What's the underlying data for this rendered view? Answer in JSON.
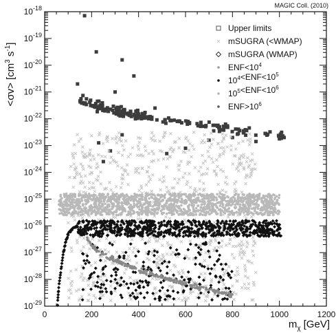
{
  "chart_data": {
    "type": "scatter",
    "title": "",
    "credit": "MAGIC Coll. (2010)",
    "xlabel": "m",
    "xlabel_subscript": "χ",
    "xlabel_unit": "[GeV]",
    "ylabel": "<σv> [cm",
    "ylabel_sup": "3",
    "ylabel_tail": " s",
    "ylabel_sup2": "-1",
    "ylabel_end": "]",
    "xlim": [
      0,
      1200
    ],
    "ylim_log10": [
      -29,
      -18
    ],
    "y_scale": "log",
    "grid": false,
    "legend_position": "top-right",
    "x_ticks": [
      0,
      200,
      400,
      600,
      800,
      1000,
      1200
    ],
    "x_tick_labels": [
      "0",
      "200",
      "400",
      "600",
      "800",
      "1000",
      "1200"
    ],
    "y_ticks_exp": [
      -29,
      -28,
      -27,
      -26,
      -25,
      -24,
      -23,
      -22,
      -21,
      -20,
      -19,
      -18
    ],
    "y_tick_base": "10",
    "legend": [
      {
        "label": "Upper limits",
        "marker": "open-square",
        "color": "#555555"
      },
      {
        "label": "mSUGRA (<WMAP)",
        "marker": "cross",
        "color": "#c8c8c8"
      },
      {
        "label": "mSUGRA (WMAP)",
        "marker": "open-diamond",
        "color": "#333333"
      },
      {
        "label_base": "ENF<10",
        "label_sup": "4",
        "marker": "dot",
        "color": "#9a9a9a"
      },
      {
        "label_pre": "10",
        "label_pre_sup": "4",
        "label_base": "<ENF<10",
        "label_sup": "5",
        "marker": "dot",
        "color": "#111111"
      },
      {
        "label_pre": "10",
        "label_pre_sup": "5",
        "label_base": "<ENF<10",
        "label_sup": "6",
        "marker": "dot",
        "color": "#b4b4b4"
      },
      {
        "label_base": "ENF>10",
        "label_sup": "6",
        "marker": "dot",
        "color": "#5a5a5a"
      }
    ],
    "series": [
      {
        "name": "Upper limits",
        "marker": "filled-square",
        "color": "#3c3c3c",
        "points": [
          {
            "x": 170,
            "y_exp": -18.15
          },
          {
            "x": 220,
            "y_exp": -19.5
          },
          {
            "x": 330,
            "y_exp": -19.8
          },
          {
            "x": 380,
            "y_exp": -20.4
          },
          {
            "x": 140,
            "y_exp": -20.7
          },
          {
            "x": 300,
            "y_exp": -21.0
          },
          {
            "x": 470,
            "y_exp": -21.6
          },
          {
            "x": 250,
            "y_exp": -23.6
          },
          {
            "x": 280,
            "y_exp": -23.2
          },
          {
            "x": 230,
            "y_exp": -22.9
          },
          {
            "x": 520,
            "y_exp": -23.3
          },
          {
            "x": 330,
            "y_exp": -22.6
          },
          {
            "x": 600,
            "y_exp": -23.1
          },
          {
            "x": 700,
            "y_exp": -22.8
          },
          {
            "x": 900,
            "y_exp": -22.85
          },
          {
            "x": 1000,
            "y_exp": -22.75
          },
          {
            "x": 1020,
            "y_exp": -22.7
          },
          {
            "x": 800,
            "y_exp": -22.7
          }
        ],
        "bands": [
          {
            "x_start": 140,
            "x_end": 1030,
            "y_exp_at_start": -21.0,
            "y_exp_at_end": -22.65,
            "spread": 0.22,
            "count": 120
          },
          {
            "x_start": 150,
            "x_end": 460,
            "y_exp_at_start": -21.25,
            "y_exp_at_end": -22.0,
            "spread": 0.18,
            "count": 70
          }
        ]
      },
      {
        "name": "mSUGRA (<WMAP)",
        "marker": "cross",
        "color": "#c3c3c3",
        "regions": [
          {
            "x_start": 100,
            "x_end": 900,
            "y_exp_low": -28.8,
            "y_exp_high": -22.5,
            "count": 900
          }
        ]
      },
      {
        "name": "ENF<10^4",
        "marker": "dot",
        "color": "#b9b9b9",
        "regions": [
          {
            "x_start": 60,
            "x_end": 1000,
            "y_exp_low": -25.6,
            "y_exp_high": -24.8,
            "count": 1400
          }
        ]
      },
      {
        "name": "mSUGRA (WMAP)",
        "marker": "filled-diamond",
        "color": "#111111",
        "regions": [
          {
            "x_start": 140,
            "x_end": 1010,
            "y_exp_low": -26.4,
            "y_exp_high": -25.8,
            "count": 700
          },
          {
            "x_start": 150,
            "x_end": 800,
            "y_exp_low": -28.8,
            "y_exp_high": -26.6,
            "count": 220
          }
        ],
        "curve": {
          "x_points": [
            55,
            60,
            70,
            80,
            90,
            100,
            120,
            140
          ],
          "y_exp_points": [
            -28.9,
            -28.3,
            -27.6,
            -27.0,
            -26.6,
            -26.3,
            -26.1,
            -26.0
          ]
        }
      },
      {
        "name": "ENF>10^6",
        "marker": "dot",
        "color": "#8a8a8a",
        "bands": [
          {
            "x_start": 180,
            "x_end": 800,
            "y_exp_at_start": -26.4,
            "y_exp_at_end": -28.6,
            "spread": 0.12,
            "count": 220
          }
        ]
      }
    ]
  }
}
